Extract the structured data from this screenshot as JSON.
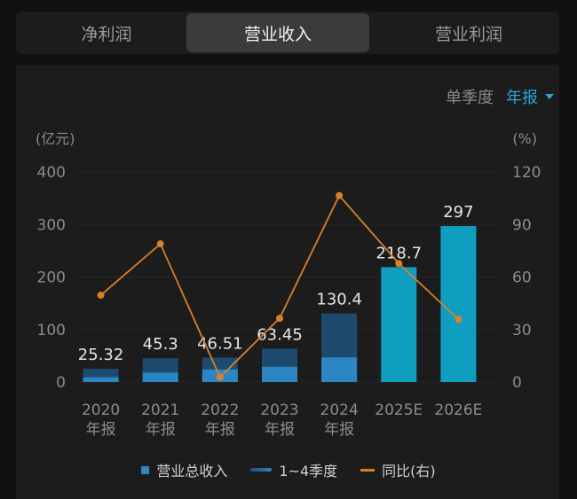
{
  "tabs": [
    {
      "label": "净利润"
    },
    {
      "label": "营业收入"
    },
    {
      "label": "营业利润"
    }
  ],
  "period": {
    "option_quarter": "单季度",
    "option_annual": "年报"
  },
  "colors": {
    "total_bar": "#2d86c4",
    "total_bar_dark": "#1d4a6e",
    "forecast_bar": "#0f9ec0",
    "line": "#d9802a"
  },
  "legend": {
    "total": "营业总收入",
    "quarters": "1~4季度",
    "yoy": "同比(右)"
  },
  "chart_data": {
    "type": "bar",
    "left_unit": "(亿元)",
    "right_unit": "(%)",
    "left_ticks": [
      "400",
      "300",
      "200",
      "100",
      "0"
    ],
    "right_ticks": [
      "120",
      "90",
      "60",
      "30",
      "0"
    ],
    "ylim": [
      0,
      400
    ],
    "y2lim": [
      0,
      120
    ],
    "categories": [
      {
        "l1": "2020",
        "l2": "年报"
      },
      {
        "l1": "2021",
        "l2": "年报"
      },
      {
        "l1": "2022",
        "l2": "年报"
      },
      {
        "l1": "2023",
        "l2": "年报"
      },
      {
        "l1": "2024",
        "l2": "年报"
      },
      {
        "l1": "2025E",
        "l2": ""
      },
      {
        "l1": "2026E",
        "l2": ""
      }
    ],
    "values": [
      25.32,
      45.3,
      46.51,
      63.45,
      130.4,
      218.7,
      297
    ],
    "value_labels": [
      "25.32",
      "45.3",
      "46.51",
      "63.45",
      "130.4",
      "218.7",
      "297"
    ],
    "quarter_values": [
      9,
      18,
      24,
      29,
      47,
      null,
      null
    ],
    "forecast": [
      false,
      false,
      false,
      false,
      false,
      true,
      true
    ],
    "yoy_percent": [
      49.6,
      78.9,
      2.7,
      36.4,
      106.5,
      67.7,
      35.8
    ]
  }
}
